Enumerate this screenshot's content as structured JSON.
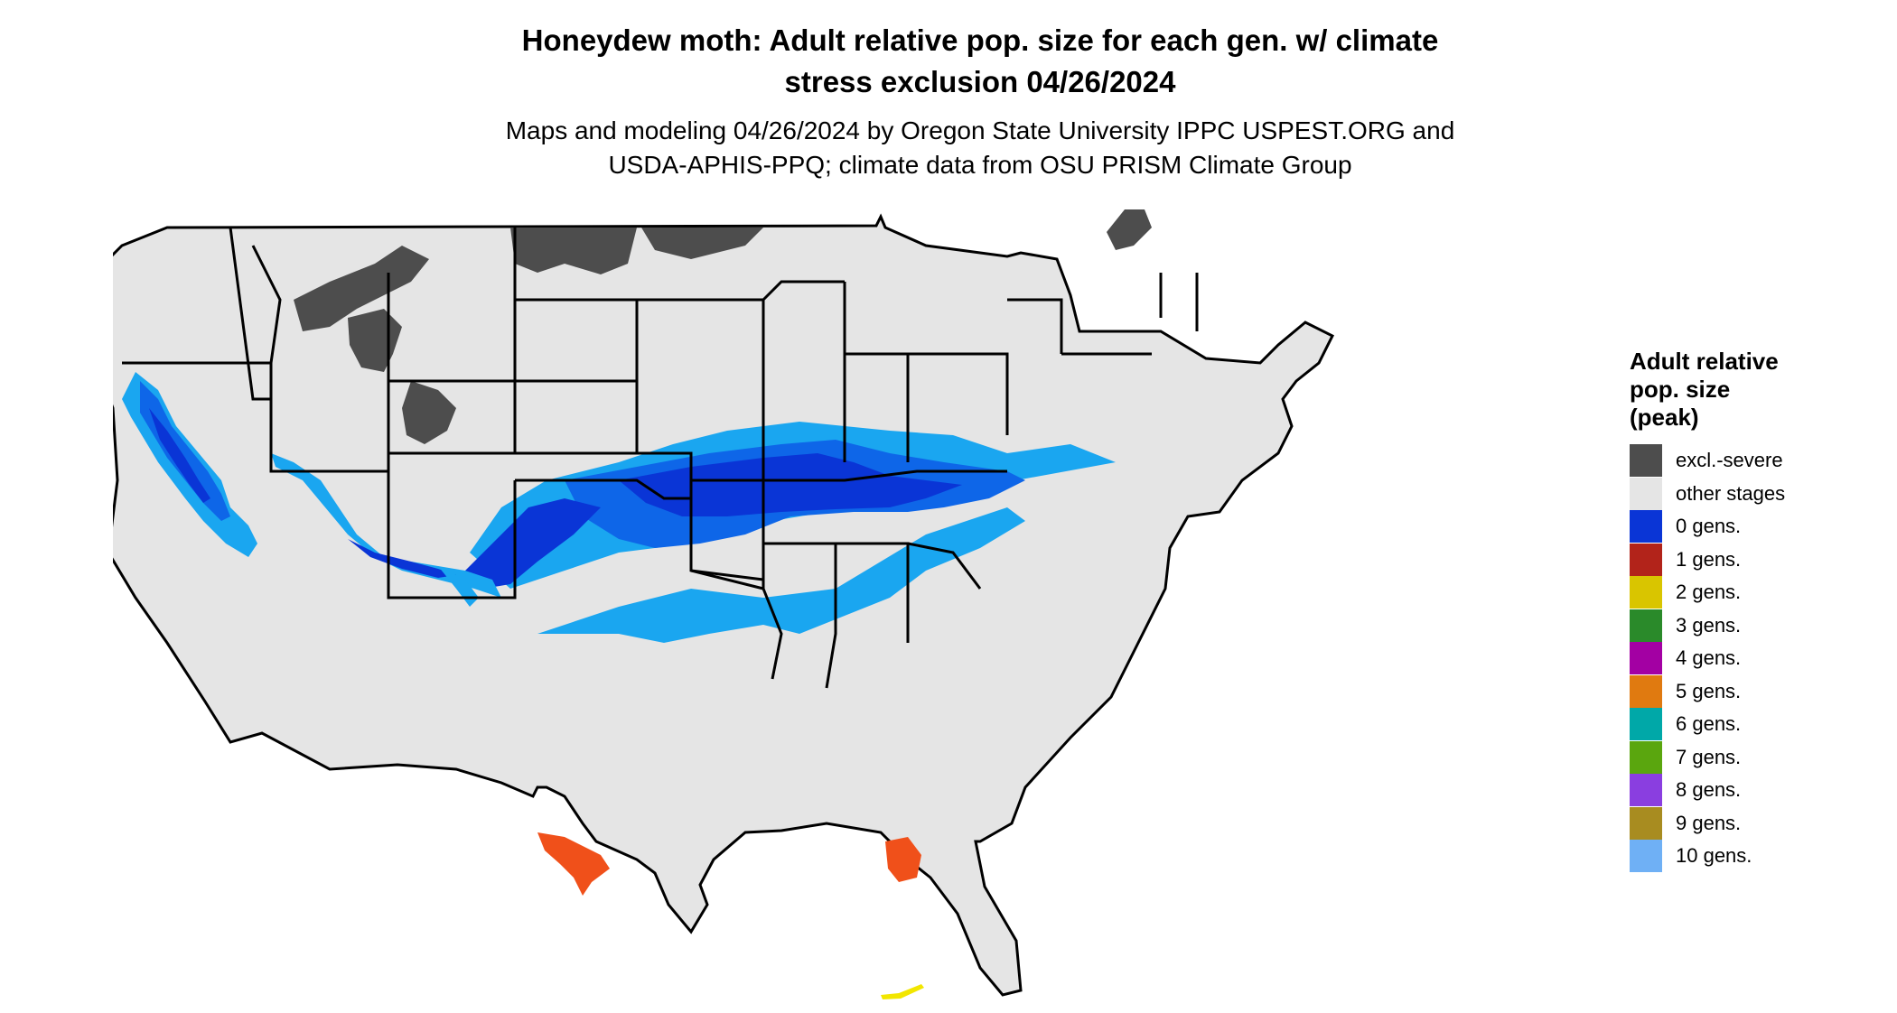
{
  "title": {
    "line1": "Honeydew moth: Adult relative pop. size for each gen. w/ climate",
    "line2": "stress exclusion 04/26/2024"
  },
  "subtitle": {
    "line1": "Maps and modeling 04/26/2024 by Oregon State University IPPC USPEST.ORG and",
    "line2": "USDA-APHIS-PPQ; climate data from OSU PRISM Climate Group"
  },
  "legend": {
    "title_line1": "Adult relative",
    "title_line2": "pop. size",
    "title_line3": "(peak)",
    "items": [
      {
        "label": "excl.-severe",
        "color": "#4d4d4d"
      },
      {
        "label": "other stages",
        "color": "#e5e5e5"
      },
      {
        "label": "0 gens.",
        "color": "#0a35d6"
      },
      {
        "label": "1 gens.",
        "color": "#b2231a"
      },
      {
        "label": "2 gens.",
        "color": "#d9c500"
      },
      {
        "label": "3 gens.",
        "color": "#2a8a2a"
      },
      {
        "label": "4 gens.",
        "color": "#a300a3"
      },
      {
        "label": "5 gens.",
        "color": "#e07a10"
      },
      {
        "label": "6 gens.",
        "color": "#00a8a8"
      },
      {
        "label": "7 gens.",
        "color": "#5aa60e"
      },
      {
        "label": "8 gens.",
        "color": "#8a3ee0"
      },
      {
        "label": "9 gens.",
        "color": "#a88c20"
      },
      {
        "label": "10 gens.",
        "color": "#6fb0f5"
      }
    ]
  },
  "map_colors": {
    "other": "#e5e5e5",
    "excluded": "#4d4d4d",
    "light_blue": "#1aa6f0",
    "mid_blue": "#0e66e8",
    "dark_blue": "#0a35d6",
    "red_orange": "#f0501a",
    "yellow": "#f2e600",
    "border": "#000000"
  }
}
